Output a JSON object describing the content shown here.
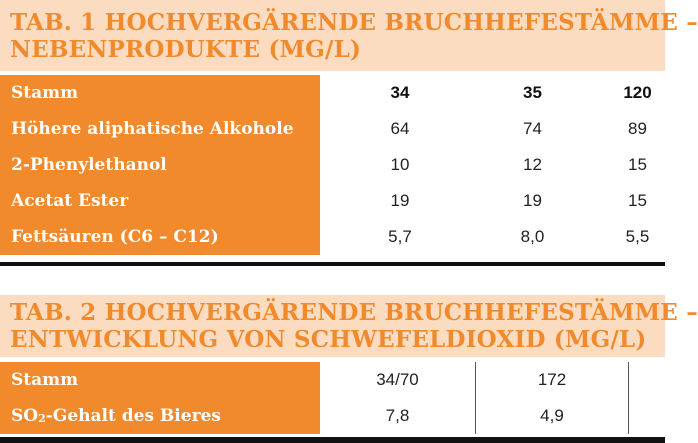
{
  "table1": {
    "title_line1": "TAB. 1  HOCHVERGÄRENDE BRUCHHEFESTÄMME –",
    "title_line2": "NEBENPRODUKTE (MG/L)",
    "header": {
      "label": "Stamm",
      "values": [
        "34",
        "35",
        "120"
      ]
    },
    "rows": [
      {
        "label": "Höhere aliphatische Alkohole",
        "values": [
          "64",
          "74",
          "89"
        ]
      },
      {
        "label": "2-Phenylethanol",
        "values": [
          "10",
          "12",
          "15"
        ]
      },
      {
        "label": "Acetat Ester",
        "values": [
          "19",
          "19",
          "15"
        ]
      },
      {
        "label": "Fettsäuren (C6 – C12)",
        "values": [
          "5,7",
          "8,0",
          "5,5"
        ]
      }
    ]
  },
  "table2": {
    "title_line1": "TAB. 2  HOCHVERGÄRENDE BRUCHHEFESTÄMME –",
    "title_line2": "ENTWICKLUNG VON SCHWEFELDIOXID (MG/L)",
    "header": {
      "label": "Stamm",
      "values": [
        "34/70",
        "172"
      ]
    },
    "rows": [
      {
        "label_main": "SO",
        "label_sub": "2",
        "label_rest": "-Gehalt des Bieres",
        "values": [
          "7,8",
          "4,9"
        ]
      }
    ]
  },
  "colors": {
    "accent": "#f08a2c",
    "title_bg": "#fbdcc0",
    "rule": "#111111"
  }
}
